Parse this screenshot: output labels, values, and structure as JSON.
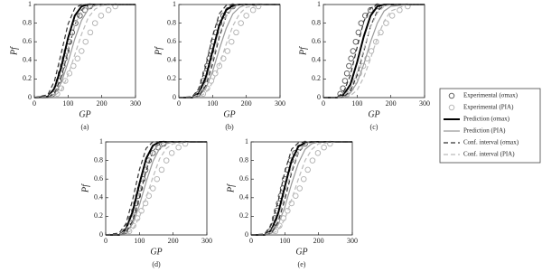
{
  "chart_data": [
    {
      "type": "line",
      "caption": "(a)",
      "xlabel": "GP",
      "ylabel": "Pf",
      "xlim": [
        0,
        300
      ],
      "ylim": [
        0,
        1
      ],
      "xticks": [
        0,
        100,
        200,
        300
      ],
      "yticks": [
        0,
        0.2,
        0.4,
        0.6,
        0.8,
        1
      ],
      "x": [
        0,
        40,
        60,
        80,
        100,
        120,
        140,
        160,
        180,
        200,
        250,
        300
      ],
      "series": [
        {
          "name": "Experimental (σmax)",
          "color": "#555555",
          "mark": "circle",
          "x": [
            55,
            65,
            72,
            78,
            84,
            90,
            96,
            104,
            112,
            122,
            135,
            150,
            165
          ],
          "values": [
            0.04,
            0.1,
            0.18,
            0.26,
            0.34,
            0.42,
            0.5,
            0.6,
            0.7,
            0.8,
            0.88,
            0.94,
            0.98
          ]
        },
        {
          "name": "Experimental (PIA)",
          "color": "#b0b0b0",
          "mark": "circle",
          "x": [
            68,
            80,
            92,
            104,
            116,
            128,
            140,
            152,
            166,
            180,
            198,
            220,
            240
          ],
          "values": [
            0.04,
            0.1,
            0.18,
            0.26,
            0.34,
            0.42,
            0.5,
            0.6,
            0.7,
            0.8,
            0.88,
            0.94,
            0.98
          ]
        },
        {
          "name": "Prediction (σmax)",
          "color": "#000000",
          "mark": "solid",
          "values": [
            0,
            0.01,
            0.1,
            0.33,
            0.64,
            0.88,
            0.98,
            1,
            1,
            1,
            1,
            1
          ]
        },
        {
          "name": "Prediction (PIA)",
          "color": "#999999",
          "mark": "solid",
          "values": [
            0,
            0,
            0.04,
            0.16,
            0.38,
            0.63,
            0.83,
            0.95,
            0.99,
            1,
            1,
            1
          ]
        },
        {
          "name": "Conf. interval (σmax)",
          "color": "#333333",
          "mark": "dashed",
          "lower": [
            0,
            0,
            0.05,
            0.22,
            0.5,
            0.78,
            0.94,
            0.99,
            1,
            1,
            1,
            1
          ],
          "upper": [
            0,
            0.03,
            0.18,
            0.48,
            0.79,
            0.96,
            1,
            1,
            1,
            1,
            1,
            1
          ]
        },
        {
          "name": "Conf. interval (PIA)",
          "color": "#bbbbbb",
          "mark": "dashed",
          "lower": [
            0,
            0,
            0.02,
            0.08,
            0.24,
            0.46,
            0.68,
            0.86,
            0.95,
            0.99,
            1,
            1
          ],
          "upper": [
            0,
            0.01,
            0.07,
            0.26,
            0.53,
            0.78,
            0.93,
            0.99,
            1,
            1,
            1,
            1
          ]
        }
      ]
    },
    {
      "type": "line",
      "caption": "(b)",
      "xlabel": "GP",
      "ylabel": "Pf",
      "xlim": [
        0,
        300
      ],
      "ylim": [
        0,
        1
      ],
      "xticks": [
        0,
        100,
        200,
        300
      ],
      "yticks": [
        0,
        0.2,
        0.4,
        0.6,
        0.8,
        1
      ],
      "x": [
        0,
        40,
        60,
        80,
        100,
        120,
        140,
        160,
        180,
        200,
        250,
        300
      ],
      "series": [
        {
          "color": "#555555",
          "mark": "circle",
          "x": [
            58,
            66,
            72,
            78,
            84,
            90,
            96,
            102,
            110,
            120,
            132,
            146,
            160
          ],
          "values": [
            0.04,
            0.1,
            0.18,
            0.26,
            0.34,
            0.42,
            0.5,
            0.6,
            0.7,
            0.8,
            0.88,
            0.94,
            0.98
          ]
        },
        {
          "color": "#b0b0b0",
          "mark": "circle",
          "x": [
            72,
            84,
            96,
            108,
            120,
            132,
            144,
            156,
            170,
            184,
            200,
            220,
            236
          ],
          "values": [
            0.04,
            0.1,
            0.18,
            0.26,
            0.34,
            0.42,
            0.5,
            0.6,
            0.7,
            0.8,
            0.88,
            0.94,
            0.98
          ]
        },
        {
          "color": "#000000",
          "mark": "solid",
          "values": [
            0,
            0,
            0.05,
            0.22,
            0.5,
            0.78,
            0.94,
            0.99,
            1,
            1,
            1,
            1
          ]
        },
        {
          "color": "#999999",
          "mark": "solid",
          "values": [
            0,
            0,
            0.02,
            0.1,
            0.28,
            0.52,
            0.74,
            0.9,
            0.97,
            1,
            1,
            1
          ]
        },
        {
          "color": "#333333",
          "mark": "dashed",
          "lower": [
            0,
            0,
            0.02,
            0.13,
            0.36,
            0.65,
            0.87,
            0.97,
            1,
            1,
            1,
            1
          ],
          "upper": [
            0,
            0.01,
            0.1,
            0.34,
            0.66,
            0.9,
            0.99,
            1,
            1,
            1,
            1,
            1
          ]
        },
        {
          "color": "#bbbbbb",
          "mark": "dashed",
          "lower": [
            0,
            0,
            0.01,
            0.05,
            0.16,
            0.35,
            0.57,
            0.77,
            0.9,
            0.97,
            1,
            1
          ],
          "upper": [
            0,
            0,
            0.04,
            0.17,
            0.41,
            0.68,
            0.87,
            0.97,
            1,
            1,
            1,
            1
          ]
        }
      ]
    },
    {
      "type": "line",
      "caption": "(c)",
      "xlabel": "GP",
      "ylabel": "Pf",
      "xlim": [
        0,
        300
      ],
      "ylim": [
        0,
        1
      ],
      "xticks": [
        0,
        100,
        200,
        300
      ],
      "yticks": [
        0,
        0.2,
        0.4,
        0.6,
        0.8,
        1
      ],
      "x": [
        0,
        40,
        60,
        80,
        100,
        120,
        140,
        160,
        180,
        200,
        250,
        300
      ],
      "series": [
        {
          "color": "#555555",
          "mark": "circle",
          "x": [
            50,
            58,
            64,
            70,
            76,
            82,
            88,
            96,
            104,
            112,
            124,
            140,
            160
          ],
          "values": [
            0.04,
            0.1,
            0.18,
            0.26,
            0.34,
            0.42,
            0.5,
            0.6,
            0.7,
            0.8,
            0.88,
            0.94,
            0.98
          ]
        },
        {
          "color": "#b0b0b0",
          "mark": "circle",
          "x": [
            70,
            82,
            94,
            106,
            118,
            130,
            142,
            156,
            170,
            186,
            204,
            226,
            250
          ],
          "values": [
            0.04,
            0.1,
            0.18,
            0.26,
            0.34,
            0.42,
            0.5,
            0.6,
            0.7,
            0.8,
            0.88,
            0.94,
            0.98
          ]
        },
        {
          "color": "#000000",
          "mark": "solid",
          "values": [
            0,
            0,
            0.03,
            0.14,
            0.38,
            0.66,
            0.88,
            0.98,
            1,
            1,
            1,
            1
          ]
        },
        {
          "color": "#999999",
          "mark": "solid",
          "values": [
            0,
            0,
            0.01,
            0.05,
            0.16,
            0.36,
            0.6,
            0.8,
            0.93,
            0.98,
            1,
            1
          ]
        },
        {
          "color": "#333333",
          "mark": "dashed",
          "lower": [
            0,
            0,
            0.01,
            0.07,
            0.24,
            0.5,
            0.77,
            0.93,
            0.99,
            1,
            1,
            1
          ],
          "upper": [
            0,
            0,
            0.06,
            0.24,
            0.54,
            0.82,
            0.96,
            1,
            1,
            1,
            1,
            1
          ]
        },
        {
          "color": "#bbbbbb",
          "mark": "dashed",
          "lower": [
            0,
            0,
            0,
            0.02,
            0.08,
            0.22,
            0.42,
            0.64,
            0.82,
            0.93,
            1,
            1
          ],
          "upper": [
            0,
            0,
            0.02,
            0.1,
            0.27,
            0.52,
            0.76,
            0.91,
            0.98,
            1,
            1,
            1
          ]
        }
      ]
    },
    {
      "type": "line",
      "caption": "(d)",
      "xlabel": "GP",
      "ylabel": "Pf",
      "xlim": [
        0,
        300
      ],
      "ylim": [
        0,
        1
      ],
      "xticks": [
        0,
        100,
        200,
        300
      ],
      "yticks": [
        0,
        0.2,
        0.4,
        0.6,
        0.8,
        1
      ],
      "x": [
        0,
        40,
        60,
        80,
        100,
        120,
        140,
        160,
        180,
        200,
        250,
        300
      ],
      "series": [
        {
          "color": "#555555",
          "mark": "circle",
          "x": [
            58,
            68,
            76,
            84,
            90,
            96,
            102,
            110,
            118,
            128,
            140,
            156,
            172
          ],
          "values": [
            0.04,
            0.1,
            0.18,
            0.26,
            0.34,
            0.42,
            0.5,
            0.6,
            0.7,
            0.8,
            0.88,
            0.94,
            0.98
          ]
        },
        {
          "color": "#b0b0b0",
          "mark": "circle",
          "x": [
            70,
            82,
            94,
            106,
            118,
            128,
            140,
            152,
            166,
            180,
            196,
            216,
            236
          ],
          "values": [
            0.04,
            0.1,
            0.18,
            0.26,
            0.34,
            0.42,
            0.5,
            0.6,
            0.7,
            0.8,
            0.88,
            0.94,
            0.98
          ]
        },
        {
          "color": "#000000",
          "mark": "solid",
          "values": [
            0,
            0,
            0.06,
            0.25,
            0.55,
            0.82,
            0.96,
            1,
            1,
            1,
            1,
            1
          ]
        },
        {
          "color": "#999999",
          "mark": "solid",
          "values": [
            0,
            0,
            0.03,
            0.12,
            0.32,
            0.57,
            0.79,
            0.93,
            0.98,
            1,
            1,
            1
          ]
        },
        {
          "color": "#333333",
          "mark": "dashed",
          "lower": [
            0,
            0,
            0.03,
            0.15,
            0.4,
            0.69,
            0.9,
            0.98,
            1,
            1,
            1,
            1
          ],
          "upper": [
            0,
            0.02,
            0.12,
            0.38,
            0.7,
            0.93,
            1,
            1,
            1,
            1,
            1,
            1
          ]
        },
        {
          "color": "#bbbbbb",
          "mark": "dashed",
          "lower": [
            0,
            0,
            0.01,
            0.06,
            0.19,
            0.4,
            0.62,
            0.82,
            0.93,
            0.98,
            1,
            1
          ],
          "upper": [
            0,
            0,
            0.05,
            0.2,
            0.46,
            0.73,
            0.9,
            0.98,
            1,
            1,
            1,
            1
          ]
        }
      ]
    },
    {
      "type": "line",
      "caption": "(e)",
      "xlabel": "GP",
      "ylabel": "Pf",
      "xlim": [
        0,
        300
      ],
      "ylim": [
        0,
        1
      ],
      "xticks": [
        0,
        100,
        200,
        300
      ],
      "yticks": [
        0,
        0.2,
        0.4,
        0.6,
        0.8,
        1
      ],
      "x": [
        0,
        40,
        60,
        80,
        100,
        120,
        140,
        160,
        180,
        200,
        250,
        300
      ],
      "series": [
        {
          "color": "#555555",
          "mark": "circle",
          "x": [
            56,
            64,
            70,
            76,
            82,
            88,
            94,
            100,
            108,
            118,
            130,
            144,
            160
          ],
          "values": [
            0.04,
            0.1,
            0.18,
            0.26,
            0.34,
            0.42,
            0.5,
            0.6,
            0.7,
            0.8,
            0.88,
            0.94,
            0.98
          ]
        },
        {
          "color": "#b0b0b0",
          "mark": "circle",
          "x": [
            72,
            84,
            96,
            108,
            120,
            132,
            144,
            156,
            168,
            182,
            198,
            216,
            234
          ],
          "values": [
            0.04,
            0.1,
            0.18,
            0.26,
            0.34,
            0.42,
            0.5,
            0.6,
            0.7,
            0.8,
            0.88,
            0.94,
            0.98
          ]
        },
        {
          "color": "#000000",
          "mark": "solid",
          "values": [
            0,
            0,
            0.05,
            0.23,
            0.52,
            0.8,
            0.95,
            0.99,
            1,
            1,
            1,
            1
          ]
        },
        {
          "color": "#999999",
          "mark": "solid",
          "values": [
            0,
            0,
            0.02,
            0.11,
            0.3,
            0.55,
            0.77,
            0.92,
            0.98,
            1,
            1,
            1
          ]
        },
        {
          "color": "#333333",
          "mark": "dashed",
          "lower": [
            0,
            0,
            0.02,
            0.14,
            0.38,
            0.67,
            0.88,
            0.98,
            1,
            1,
            1,
            1
          ],
          "upper": [
            0,
            0.01,
            0.11,
            0.36,
            0.68,
            0.92,
            0.99,
            1,
            1,
            1,
            1,
            1
          ]
        },
        {
          "color": "#bbbbbb",
          "mark": "dashed",
          "lower": [
            0,
            0,
            0.01,
            0.05,
            0.17,
            0.38,
            0.6,
            0.8,
            0.92,
            0.98,
            1,
            1
          ],
          "upper": [
            0,
            0,
            0.04,
            0.18,
            0.43,
            0.7,
            0.89,
            0.98,
            1,
            1,
            1,
            1
          ]
        }
      ]
    }
  ]
}
